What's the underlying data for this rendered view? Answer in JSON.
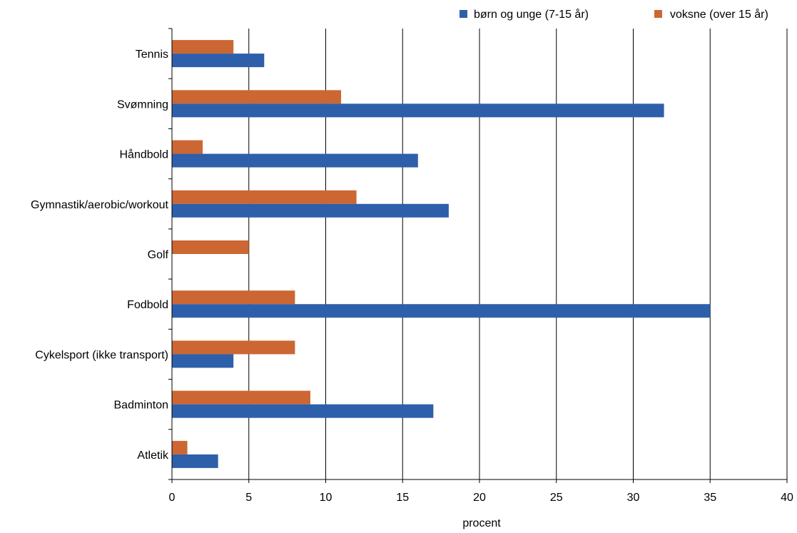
{
  "chart_data": {
    "type": "bar",
    "orientation": "horizontal",
    "title": "",
    "xlabel": "procent",
    "ylabel": "",
    "xlim": [
      0,
      40
    ],
    "x_ticks": [
      0,
      5,
      10,
      15,
      20,
      25,
      30,
      35,
      40
    ],
    "grid": "vertical",
    "legend_position": "top-right",
    "categories": [
      "Tennis",
      "Svømning",
      "Håndbold",
      "Gymnastik/aerobic/workout",
      "Golf",
      "Fodbold",
      "Cykelsport (ikke transport)",
      "Badminton",
      "Atletik"
    ],
    "series": [
      {
        "name": "børn og unge (7-15 år)",
        "color": "#2E5FAA",
        "values": [
          6,
          32,
          16,
          18,
          0,
          35,
          4,
          17,
          3
        ]
      },
      {
        "name": "voksne (over 15 år)",
        "color": "#CC6633",
        "values": [
          4,
          11,
          2,
          12,
          5,
          8,
          8,
          9,
          1
        ]
      }
    ]
  }
}
